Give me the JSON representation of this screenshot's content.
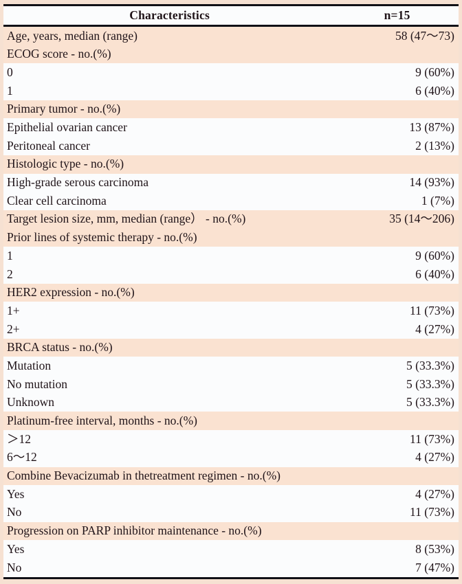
{
  "table": {
    "header": {
      "characteristics": "Characteristics",
      "n": "n=15"
    },
    "rows": [
      {
        "label": "Age, years, median (range)",
        "value": "58 (47～73)",
        "shaded": true
      },
      {
        "label": "ECOG score - no.(%)",
        "value": "",
        "shaded": true
      },
      {
        "label": "0",
        "value": "9 (60%)",
        "shaded": false
      },
      {
        "label": "1",
        "value": "6 (40%)",
        "shaded": false
      },
      {
        "label": "Primary tumor - no.(%)",
        "value": "",
        "shaded": true
      },
      {
        "label": "Epithelial ovarian cancer",
        "value": "13 (87%)",
        "shaded": false
      },
      {
        "label": "Peritoneal cancer",
        "value": "2 (13%)",
        "shaded": false
      },
      {
        "label": "Histologic type - no.(%)",
        "value": "",
        "shaded": true
      },
      {
        "label": "High-grade serous carcinoma",
        "value": "14 (93%)",
        "shaded": false
      },
      {
        "label": "Clear cell carcinoma",
        "value": "1 (7%)",
        "shaded": false
      },
      {
        "label": "Target lesion size, mm, median (range） - no.(%)",
        "value": "35 (14～206)",
        "shaded": true
      },
      {
        "label": "Prior lines of systemic therapy - no.(%)",
        "value": "",
        "shaded": true
      },
      {
        "label": "1",
        "value": "9 (60%)",
        "shaded": false
      },
      {
        "label": "2",
        "value": "6 (40%)",
        "shaded": false
      },
      {
        "label": "HER2 expression - no.(%)",
        "value": "",
        "shaded": true
      },
      {
        "label": "1+",
        "value": "11 (73%)",
        "shaded": false
      },
      {
        "label": "2+",
        "value": "4 (27%)",
        "shaded": false
      },
      {
        "label": "BRCA status - no.(%)",
        "value": "",
        "shaded": true
      },
      {
        "label": "Mutation",
        "value": "5 (33.3%)",
        "shaded": false
      },
      {
        "label": "No mutation",
        "value": "5 (33.3%)",
        "shaded": false
      },
      {
        "label": "Unknown",
        "value": "5 (33.3%)",
        "shaded": false
      },
      {
        "label": "Platinum-free interval, months - no.(%)",
        "value": "",
        "shaded": true
      },
      {
        "label": "＞12",
        "value": "11 (73%)",
        "shaded": false
      },
      {
        "label": "6～12",
        "value": "4 (27%)",
        "shaded": false
      },
      {
        "label": "Combine Bevacizumab in thetreatment regimen - no.(%)",
        "value": "",
        "shaded": true
      },
      {
        "label": "Yes",
        "value": "4 (27%)",
        "shaded": false
      },
      {
        "label": "No",
        "value": "11 (73%)",
        "shaded": false
      },
      {
        "label": "Progression on PARP inhibitor maintenance - no.(%)",
        "value": "",
        "shaded": true
      },
      {
        "label": "Yes",
        "value": "8 (53%)",
        "shaded": false
      },
      {
        "label": "No",
        "value": "7 (47%)",
        "shaded": false
      }
    ],
    "colors": {
      "shaded_row_bg": "#fae2d1",
      "plain_row_bg": "#fbfcfd",
      "outer_margin_bg": "#f6e1d2",
      "rule": "#101016",
      "text": "#1f1318"
    }
  }
}
